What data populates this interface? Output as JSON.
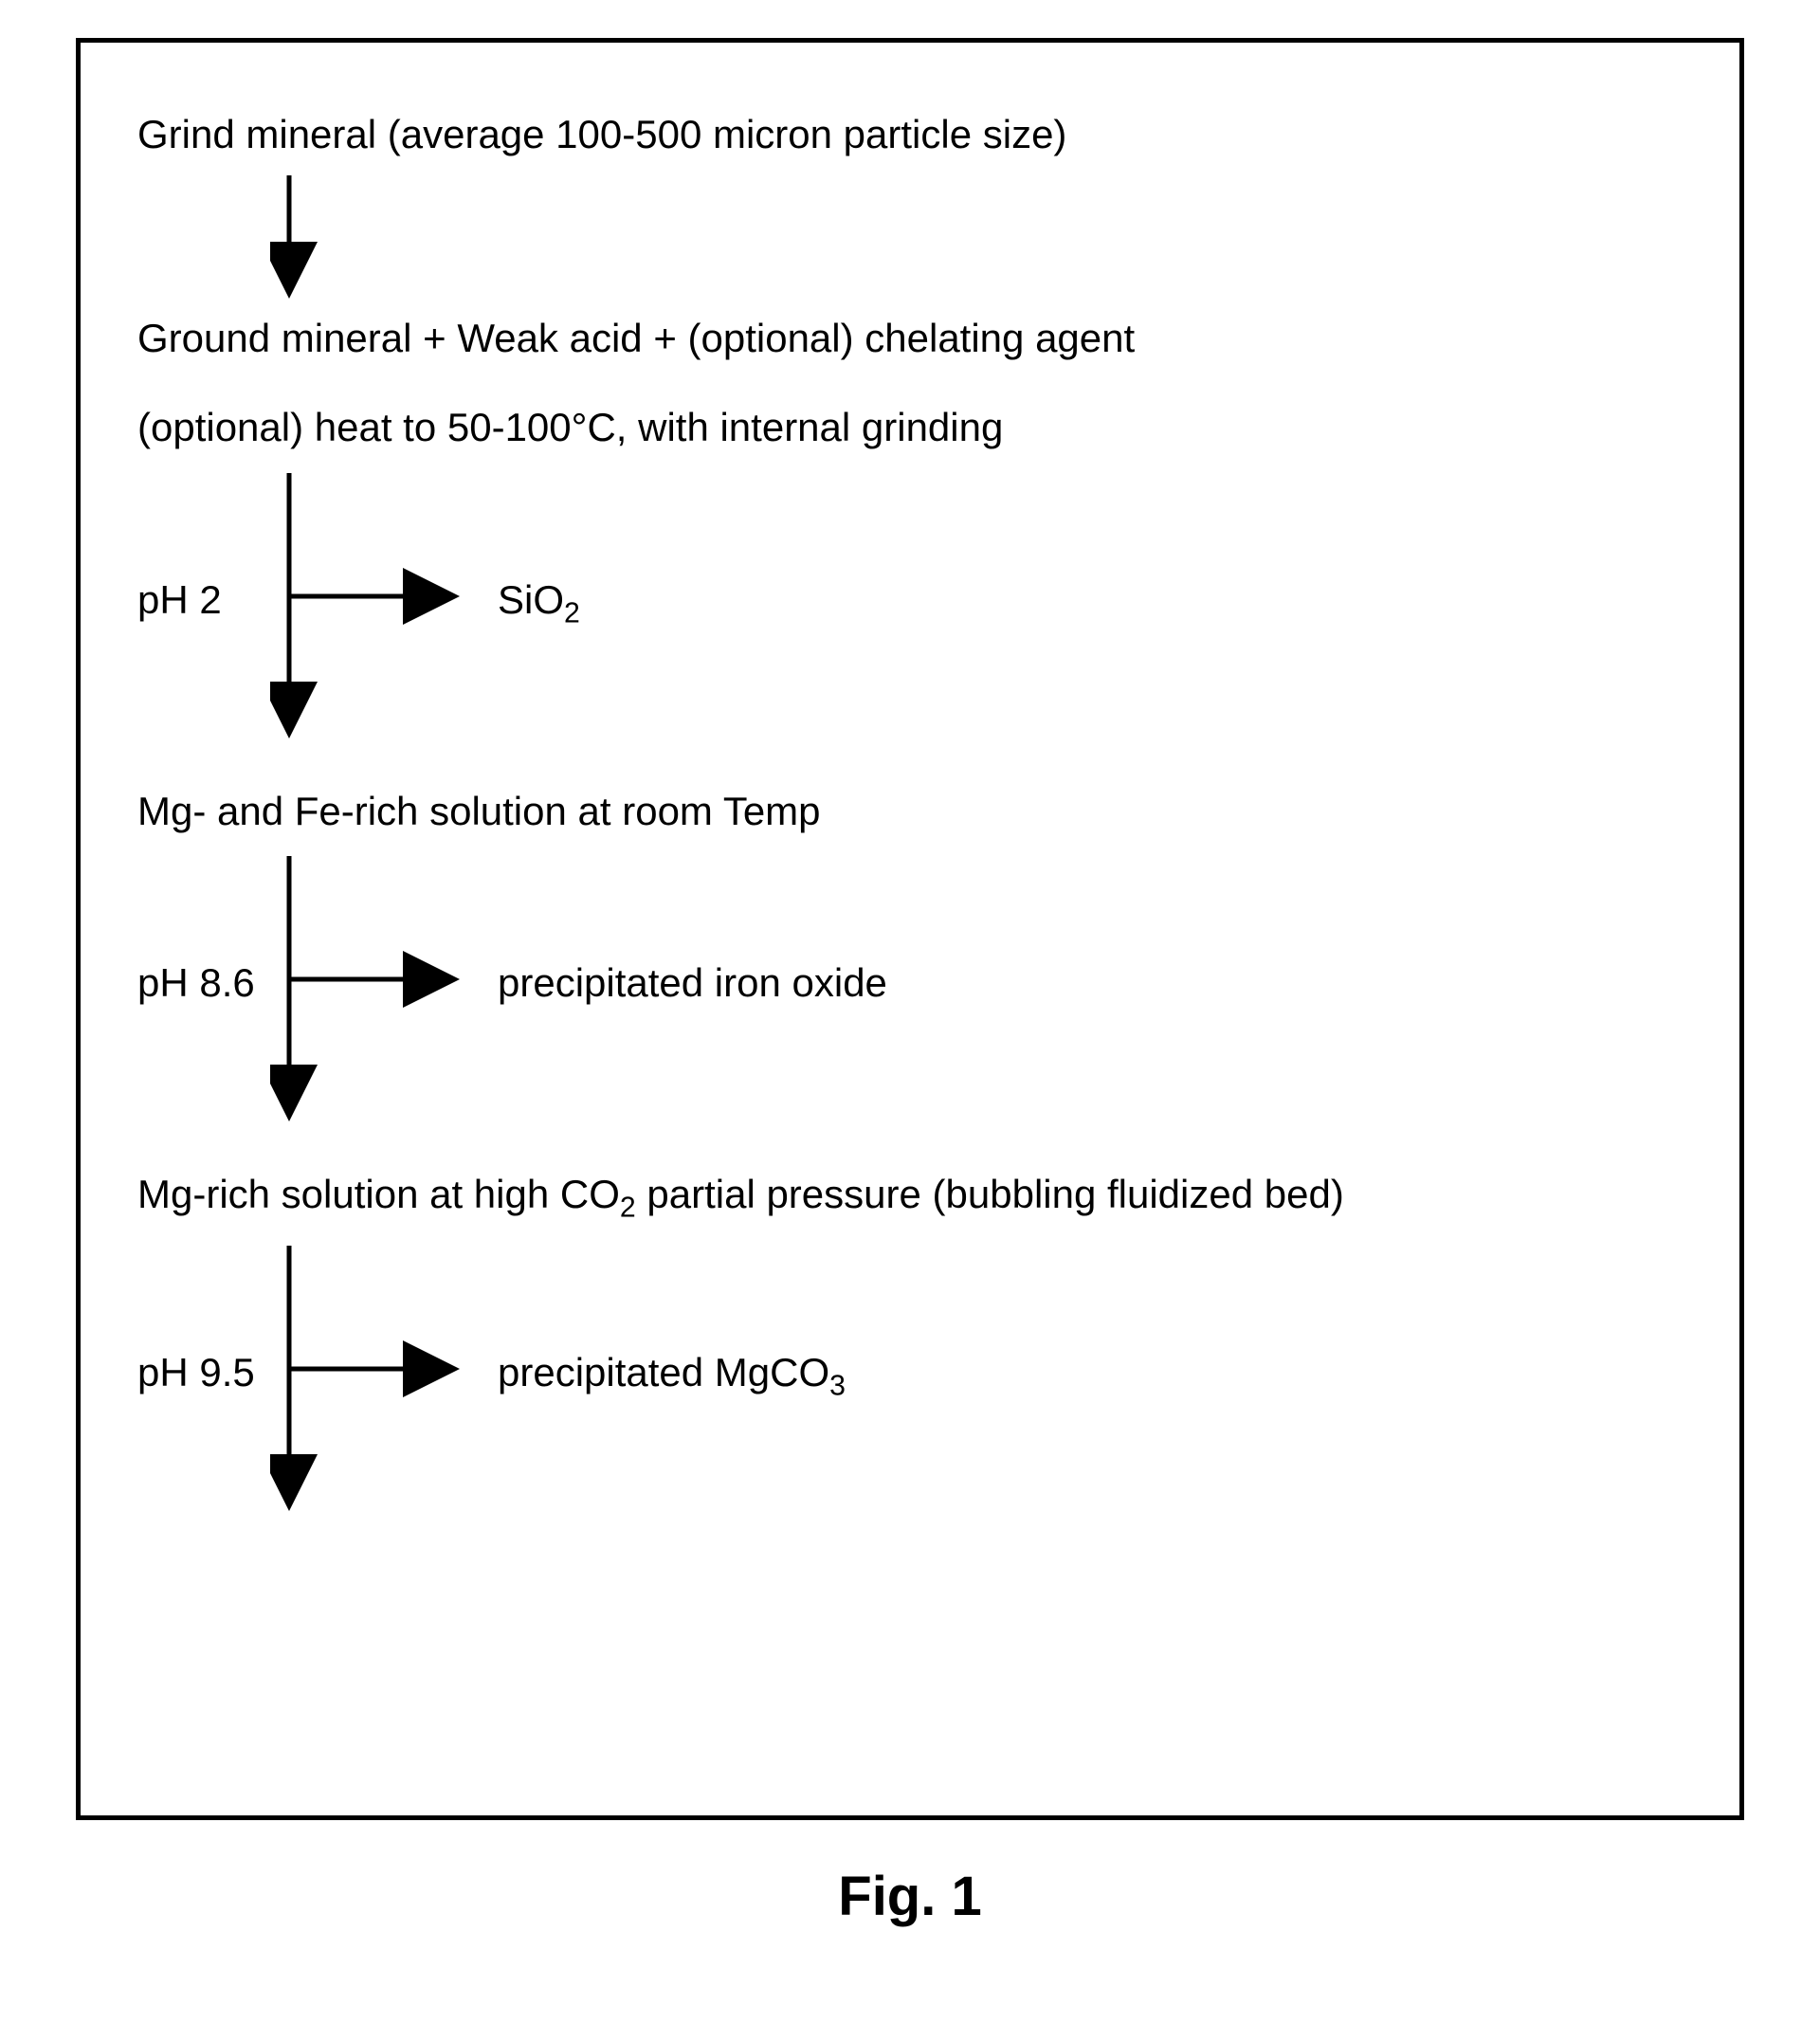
{
  "diagram": {
    "type": "flowchart",
    "border_color": "#000000",
    "border_width": 5,
    "background_color": "#ffffff",
    "font_family": "Arial",
    "font_size": 42,
    "font_color": "#000000",
    "arrow_color": "#000000",
    "arrow_stroke_width": 5,
    "steps": [
      {
        "id": "step1",
        "text": "Grind mineral (average 100-500 micron particle size)",
        "arrow_down_length": 110
      },
      {
        "id": "step2",
        "text_line1": "Ground mineral + Weak acid + (optional) chelating agent",
        "text_line2": "(optional) heat to 50-100°C, with internal grinding",
        "arrow_down_length": 260,
        "branch": {
          "ph_label": "pH 2",
          "output_label_html": "SiO<span class=\"sub\">2</span>",
          "output_plain": "SiO2"
        }
      },
      {
        "id": "step3",
        "text": "Mg- and Fe-rich solution at room Temp",
        "arrow_down_length": 260,
        "branch": {
          "ph_label": "pH 8.6",
          "output_label": "precipitated iron oxide"
        }
      },
      {
        "id": "step4",
        "text_html": "Mg-rich solution at high CO<span class=\"sub\">2</span> partial pressure (bubbling fluidized bed)",
        "text_plain": "Mg-rich solution at high CO2 partial pressure (bubbling fluidized bed)",
        "arrow_down_length": 260,
        "branch": {
          "ph_label": "pH 9.5",
          "output_label_html": "precipitated MgCO<span class=\"sub\">3</span>",
          "output_plain": "precipitated MgCO3"
        }
      }
    ],
    "caption": "Fig. 1",
    "caption_fontsize": 58,
    "caption_fontweight": "bold"
  }
}
